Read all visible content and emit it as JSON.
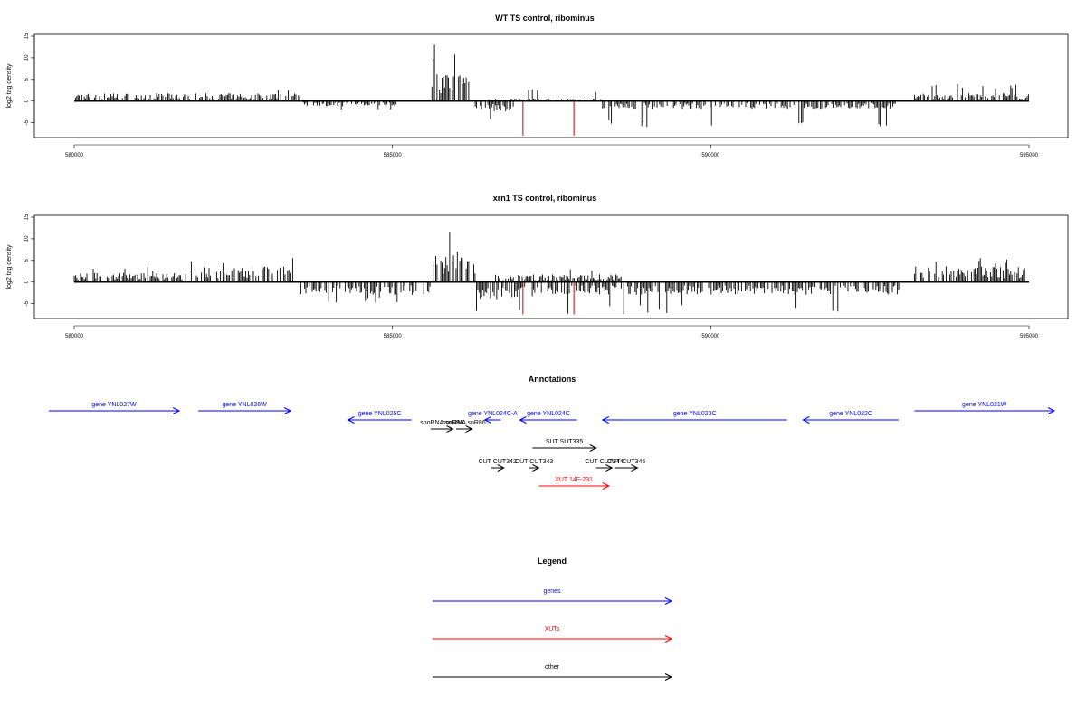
{
  "chart_data": [
    {
      "type": "bar",
      "title": "WT TS control, ribominus",
      "ylabel": "log2 tag density",
      "xlim": [
        580000,
        595000
      ],
      "ylim": [
        -8,
        15
      ],
      "xticks": [
        "580000",
        "585000",
        "590000",
        "595000"
      ],
      "yticks": [
        "15",
        "10",
        "5",
        "0",
        "-5"
      ],
      "grid": false,
      "plus_strand_regions": [
        {
          "start": 580000,
          "end": 583600,
          "typical": 1.5,
          "peak": 3.5
        },
        {
          "start": 585600,
          "end": 586200,
          "typical": 5.5,
          "peak": 14
        },
        {
          "start": 586500,
          "end": 588300,
          "typical": 0.5,
          "peak": 2.8
        },
        {
          "start": 593200,
          "end": 595000,
          "typical": 1.5,
          "peak": 4
        }
      ],
      "minus_strand_regions": [
        {
          "start": 583600,
          "end": 585100,
          "typical": -1,
          "peak": -2.5
        },
        {
          "start": 586300,
          "end": 586900,
          "typical": -2,
          "peak": -5
        },
        {
          "start": 588300,
          "end": 592900,
          "typical": -1.5,
          "peak": -6
        }
      ],
      "highlights": [
        {
          "x": 587050,
          "y": -8,
          "color": "#cc0000"
        },
        {
          "x": 587850,
          "y": -8,
          "color": "#cc0000"
        }
      ]
    },
    {
      "type": "bar",
      "title": "xrn1 TS control, ribominus",
      "ylabel": "log2 tag density",
      "xlim": [
        580000,
        595000
      ],
      "ylim": [
        -8,
        15
      ],
      "xticks": [
        "580000",
        "585000",
        "590000",
        "595000"
      ],
      "yticks": [
        "15",
        "10",
        "5",
        "0",
        "-5"
      ],
      "grid": false,
      "plus_strand_regions": [
        {
          "start": 580000,
          "end": 581800,
          "typical": 1.8,
          "peak": 3.5
        },
        {
          "start": 581800,
          "end": 583500,
          "typical": 3,
          "peak": 6
        },
        {
          "start": 585600,
          "end": 586300,
          "typical": 6,
          "peak": 14.5
        },
        {
          "start": 586600,
          "end": 588600,
          "typical": 1.5,
          "peak": 3
        },
        {
          "start": 593200,
          "end": 595000,
          "typical": 3,
          "peak": 6
        }
      ],
      "minus_strand_regions": [
        {
          "start": 583500,
          "end": 585600,
          "typical": -2.5,
          "peak": -5
        },
        {
          "start": 586300,
          "end": 587300,
          "typical": -3.5,
          "peak": -7
        },
        {
          "start": 587300,
          "end": 593000,
          "typical": -2.5,
          "peak": -7.5
        }
      ],
      "highlights": [
        {
          "x": 587050,
          "y": -7.5,
          "color": "#cc0000"
        },
        {
          "x": 587850,
          "y": -7.5,
          "color": "#cc0000"
        }
      ]
    }
  ],
  "annotations": {
    "title": "Annotations",
    "features": [
      {
        "label": "gene YNL027W",
        "start": 579600,
        "end": 581650,
        "strand": "+",
        "type": "gene",
        "color": "#0000ff"
      },
      {
        "label": "gene YNL026W",
        "start": 581950,
        "end": 583400,
        "strand": "+",
        "type": "gene",
        "color": "#0000ff"
      },
      {
        "label": "gene YNL025C",
        "start": 584300,
        "end": 585300,
        "strand": "-",
        "type": "gene",
        "color": "#0000ff"
      },
      {
        "label": "snoRNA snR86",
        "start": 585600,
        "end": 585950,
        "strand": "+",
        "type": "other",
        "color": "#000000"
      },
      {
        "label": "snoRNA snR86",
        "start": 586000,
        "end": 586250,
        "strand": "+",
        "type": "other",
        "color": "#000000"
      },
      {
        "label": "gene YNL024C-A",
        "start": 586450,
        "end": 586700,
        "strand": "-",
        "type": "gene",
        "color": "#0000ff"
      },
      {
        "label": "gene YNL024C",
        "start": 587000,
        "end": 587900,
        "strand": "-",
        "type": "gene",
        "color": "#0000ff"
      },
      {
        "label": "gene YNL023C",
        "start": 588300,
        "end": 591200,
        "strand": "-",
        "type": "gene",
        "color": "#0000ff"
      },
      {
        "label": "gene YNL022C",
        "start": 591450,
        "end": 592950,
        "strand": "-",
        "type": "gene",
        "color": "#0000ff"
      },
      {
        "label": "gene YNL021W",
        "start": 593200,
        "end": 595400,
        "strand": "+",
        "type": "gene",
        "color": "#0000ff"
      },
      {
        "label": "SUT SUT335",
        "start": 587200,
        "end": 588200,
        "strand": "+",
        "type": "other",
        "color": "#000000"
      },
      {
        "label": "CUT CUT342",
        "start": 586550,
        "end": 586750,
        "strand": "+",
        "type": "other",
        "color": "#000000"
      },
      {
        "label": "CUT CUT343",
        "start": 587150,
        "end": 587300,
        "strand": "+",
        "type": "other",
        "color": "#000000"
      },
      {
        "label": "CUT CUT344",
        "start": 588200,
        "end": 588450,
        "strand": "+",
        "type": "other",
        "color": "#000000"
      },
      {
        "label": "CUT CUT345",
        "start": 588500,
        "end": 588850,
        "strand": "+",
        "type": "other",
        "color": "#000000"
      },
      {
        "label": "XUT 14F-231",
        "start": 587300,
        "end": 588400,
        "strand": "+",
        "type": "XUT",
        "color": "#ff0000"
      }
    ]
  },
  "legend": {
    "title": "Legend",
    "items": [
      {
        "label": "genes",
        "color": "#0000ff"
      },
      {
        "label": "XUTs",
        "color": "#ff0000"
      },
      {
        "label": "other",
        "color": "#000000"
      }
    ]
  }
}
